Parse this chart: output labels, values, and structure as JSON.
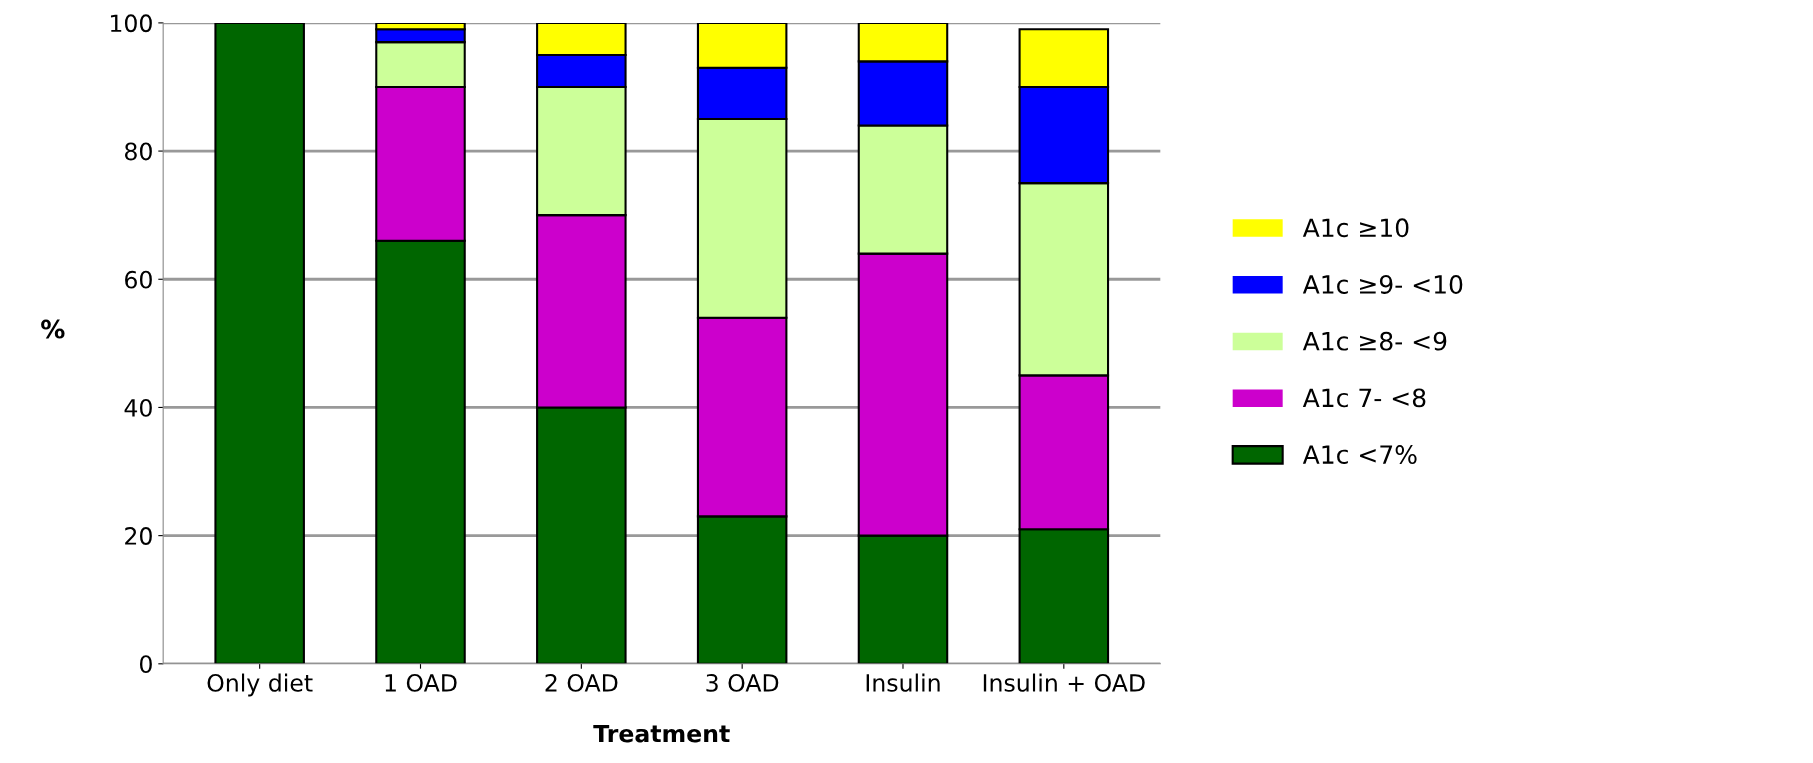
{
  "chart_data": {
    "type": "bar",
    "stacked": true,
    "xlabel": "Treatment",
    "ylabel": "%",
    "categories": [
      "Only diet",
      "1 OAD",
      "2 OAD",
      "3 OAD",
      "Insulin",
      "Insulin + OAD"
    ],
    "series": [
      {
        "name": "A1c <7%",
        "color": "#006600",
        "values": [
          100,
          66,
          40,
          23,
          20,
          21
        ]
      },
      {
        "name": "A1c 7- <8",
        "color": "#cc00cc",
        "values": [
          0,
          24,
          30,
          31,
          44,
          24
        ]
      },
      {
        "name": "A1c ≥8- <9",
        "color": "#ccff99",
        "values": [
          0,
          7,
          20,
          31,
          20,
          30
        ]
      },
      {
        "name": "A1c ≥9- <10",
        "color": "#0000ff",
        "values": [
          0,
          2,
          5,
          8,
          10,
          15
        ]
      },
      {
        "name": "A1c ≥10",
        "color": "#ffff00",
        "values": [
          0,
          1,
          5,
          7,
          6,
          9
        ]
      }
    ],
    "ylim": [
      0,
      100
    ],
    "yticks": [
      0,
      20,
      40,
      60,
      80,
      100
    ],
    "grid": "y",
    "legend": "right"
  }
}
